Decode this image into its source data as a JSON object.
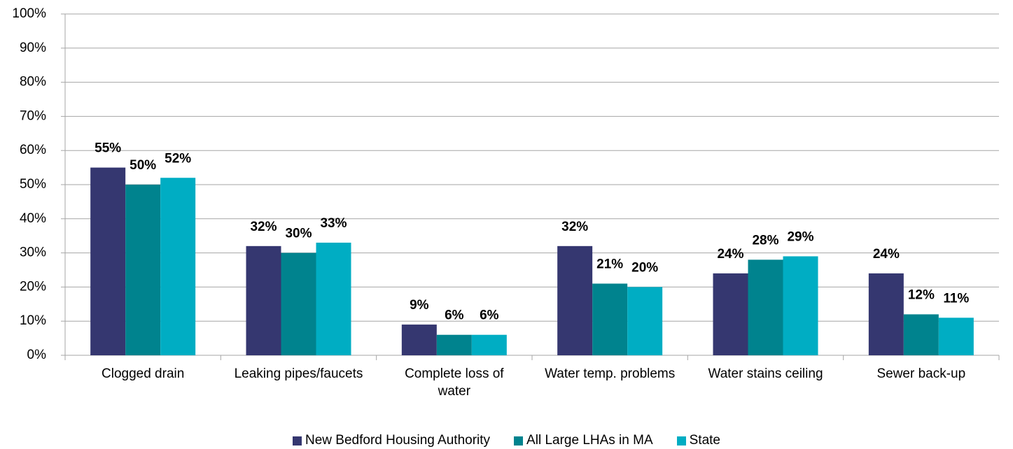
{
  "chart_data": {
    "type": "bar",
    "categories": [
      "Clogged drain",
      "Leaking pipes/faucets",
      "Complete loss of water",
      "Water temp. problems",
      "Water stains ceiling",
      "Sewer back-up"
    ],
    "series": [
      {
        "name": "New Bedford Housing Authority",
        "color": "#353770",
        "values": [
          55,
          32,
          9,
          32,
          24,
          24
        ],
        "value_labels": [
          "55%",
          "32%",
          "9%",
          "32%",
          "24%",
          "24%"
        ]
      },
      {
        "name": "All Large LHAs in MA",
        "color": "#00838e",
        "values": [
          50,
          30,
          6,
          21,
          28,
          12
        ],
        "value_labels": [
          "50%",
          "30%",
          "6%",
          "21%",
          "28%",
          "12%"
        ]
      },
      {
        "name": "State",
        "color": "#00adc3",
        "values": [
          52,
          33,
          6,
          20,
          29,
          11
        ],
        "value_labels": [
          "52%",
          "33%",
          "6%",
          "20%",
          "29%",
          "11%"
        ]
      }
    ],
    "ylim": [
      0,
      100
    ],
    "yticks": [
      {
        "value": 0,
        "label": "0%"
      },
      {
        "value": 10,
        "label": "10%"
      },
      {
        "value": 20,
        "label": "20%"
      },
      {
        "value": 30,
        "label": "30%"
      },
      {
        "value": 40,
        "label": "40%"
      },
      {
        "value": 50,
        "label": "50%"
      },
      {
        "value": 60,
        "label": "60%"
      },
      {
        "value": 70,
        "label": "70%"
      },
      {
        "value": 80,
        "label": "80%"
      },
      {
        "value": 90,
        "label": "90%"
      },
      {
        "value": 100,
        "label": "100%"
      }
    ],
    "grid": true,
    "legend": "bottom"
  }
}
